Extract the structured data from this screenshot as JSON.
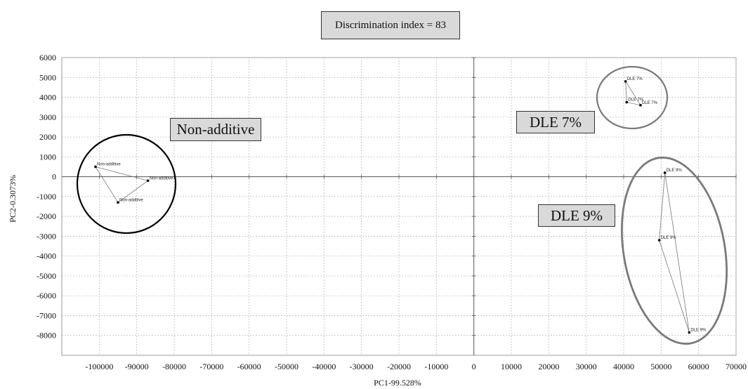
{
  "chart_data": {
    "type": "scatter",
    "title": "Discrimination index = 83",
    "xlabel": "PC1-99.528%",
    "ylabel": "PC2-0.3073%",
    "xlim": [
      -110000,
      70000
    ],
    "ylim": [
      -9000,
      6000
    ],
    "x_ticks": [
      -100000,
      -90000,
      -80000,
      -70000,
      -60000,
      -50000,
      -40000,
      -30000,
      -20000,
      -10000,
      0,
      10000,
      20000,
      30000,
      40000,
      50000,
      60000,
      70000
    ],
    "y_ticks": [
      6000,
      5000,
      4000,
      3000,
      2000,
      1000,
      0,
      -1000,
      -2000,
      -3000,
      -4000,
      -5000,
      -6000,
      -7000,
      -8000
    ],
    "grid": true,
    "groups": [
      {
        "name": "Non-additive",
        "point_label": "Non-additive",
        "ellipse_color": "#000000",
        "points": [
          {
            "x": -101000,
            "y": 500
          },
          {
            "x": -87000,
            "y": -200
          },
          {
            "x": -95000,
            "y": -1300
          }
        ]
      },
      {
        "name": "DLE 7%",
        "point_label": "DLE 7%",
        "ellipse_color": "#7a7a7a",
        "points": [
          {
            "x": 40500,
            "y": 4800
          },
          {
            "x": 40800,
            "y": 3750
          },
          {
            "x": 44500,
            "y": 3600
          }
        ]
      },
      {
        "name": "DLE 9%",
        "point_label": "DLE 9%",
        "ellipse_color": "#7a7a7a",
        "points": [
          {
            "x": 51000,
            "y": 200
          },
          {
            "x": 49500,
            "y": -3200
          },
          {
            "x": 57500,
            "y": -7850
          }
        ]
      }
    ]
  }
}
